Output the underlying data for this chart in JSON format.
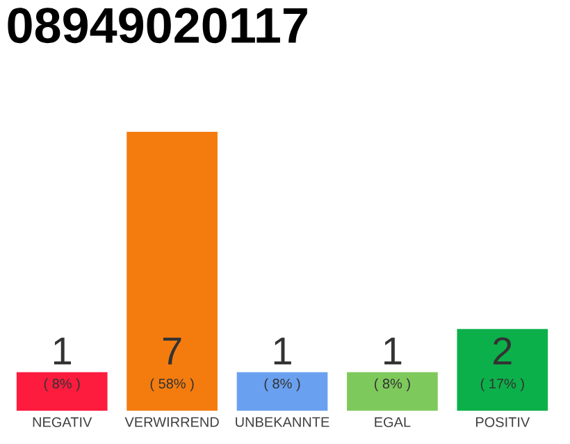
{
  "chart_data": {
    "type": "bar",
    "title": "08949020117",
    "categories": [
      "NEGATIV",
      "VERWIRREND",
      "UNBEKANNTE",
      "EGAL",
      "POSITIV"
    ],
    "values": [
      8,
      58,
      8,
      8,
      17
    ],
    "colors": [
      "#fd1b3e",
      "#f47c0f",
      "#6aa0f0",
      "#7ec95c",
      "#0cb04a"
    ],
    "value_labels": [
      "( 8% )",
      "( 58% )",
      "( 8% )",
      "( 8% )",
      "( 17% )"
    ],
    "annotations": [
      "1",
      "7",
      "1",
      "1",
      "2"
    ]
  }
}
